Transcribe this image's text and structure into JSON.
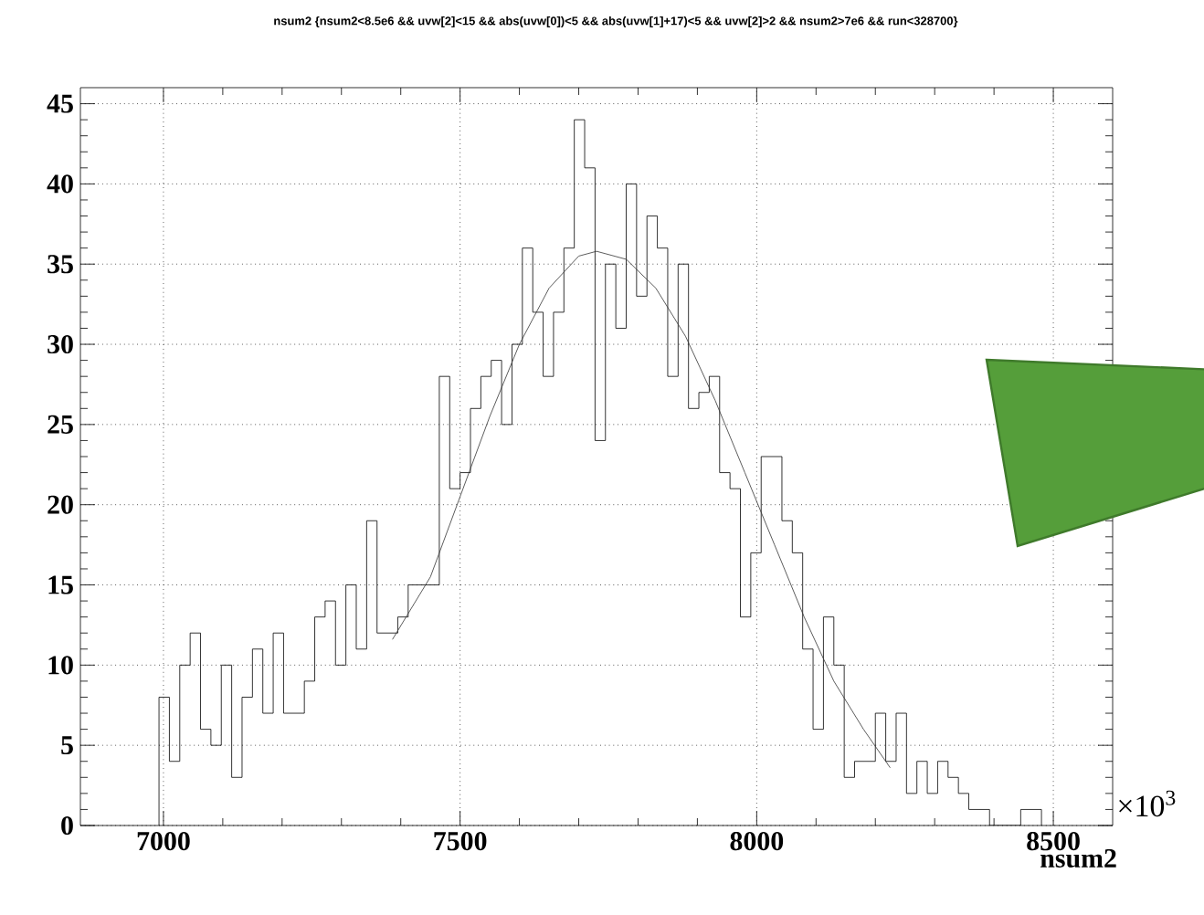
{
  "chart_data": {
    "type": "histogram",
    "title": "nsum2 {nsum2<8.5e6 && uvw[2]<15 && abs(uvw[0])<5 && abs(uvw[1]+17)<5 && uvw[2]>2 && nsum2>7e6 && run<328700}",
    "xlabel": "nsum2",
    "annotations": [
      "×10$^{3}$"
    ],
    "xlim": [
      6860,
      8600
    ],
    "ylim": [
      0,
      46
    ],
    "xticks": [
      7000,
      7500,
      8000,
      8500
    ],
    "yticks": [
      0,
      5,
      10,
      15,
      20,
      25,
      30,
      35,
      40,
      45
    ],
    "grid": true,
    "color": "#000000",
    "bins": [
      6992.5,
      7010,
      7027.5,
      7045,
      7062.5,
      7080,
      7097.5,
      7115,
      7132.5,
      7150,
      7167.5,
      7185,
      7202.5,
      7220,
      7237.5,
      7255,
      7272.5,
      7290,
      7307.5,
      7325,
      7342.5,
      7360,
      7377.5,
      7395,
      7412.5,
      7430,
      7447.5,
      7465,
      7482.5,
      7500,
      7517.5,
      7535,
      7552.5,
      7570,
      7587.5,
      7605,
      7622.5,
      7640,
      7657.5,
      7675,
      7692.5,
      7710,
      7727.5,
      7745,
      7762.5,
      7780,
      7797.5,
      7815,
      7832.5,
      7850,
      7867.5,
      7885,
      7902.5,
      7920,
      7937.5,
      7955,
      7972.5,
      7990,
      8007.5,
      8025,
      8042.5,
      8060,
      8077.5,
      8095,
      8112.5,
      8130,
      8147.5,
      8165,
      8182.5,
      8200,
      8217.5,
      8235,
      8252.5,
      8270,
      8287.5,
      8305,
      8322.5,
      8340,
      8357.5,
      8375,
      8392.5,
      8410,
      8427.5,
      8445,
      8462.5,
      8480
    ],
    "values": [
      8,
      4,
      10,
      12,
      6,
      5,
      10,
      3,
      8,
      11,
      7,
      12,
      7,
      7,
      9,
      13,
      14,
      10,
      15,
      11,
      19,
      12,
      12,
      13,
      15,
      15,
      15,
      28,
      21,
      22,
      26,
      28,
      29,
      25,
      30,
      36,
      32,
      28,
      32,
      36,
      44,
      41,
      24,
      35,
      31,
      40,
      33,
      38,
      36,
      28,
      35,
      26,
      27,
      28,
      22,
      21,
      13,
      17,
      23,
      23,
      19,
      17,
      11,
      6,
      13,
      10,
      3,
      4,
      4,
      7,
      4,
      7,
      2,
      4,
      2,
      4,
      3,
      2,
      1,
      1,
      0,
      0,
      0,
      1,
      1
    ],
    "series": [
      {
        "type": "line",
        "color": "#333333",
        "x": [
          7386,
          7450,
          7500,
          7550,
          7600,
          7650,
          7700,
          7730,
          7780,
          7830,
          7880,
          7930,
          7980,
          8030,
          8080,
          8130,
          8180,
          8225
        ],
        "values": [
          11.6,
          15.5,
          20.5,
          25.5,
          30,
          33.5,
          35.5,
          35.8,
          35.3,
          33.5,
          30.5,
          26.5,
          22,
          17.5,
          13,
          9,
          6,
          3.6
        ]
      }
    ]
  }
}
